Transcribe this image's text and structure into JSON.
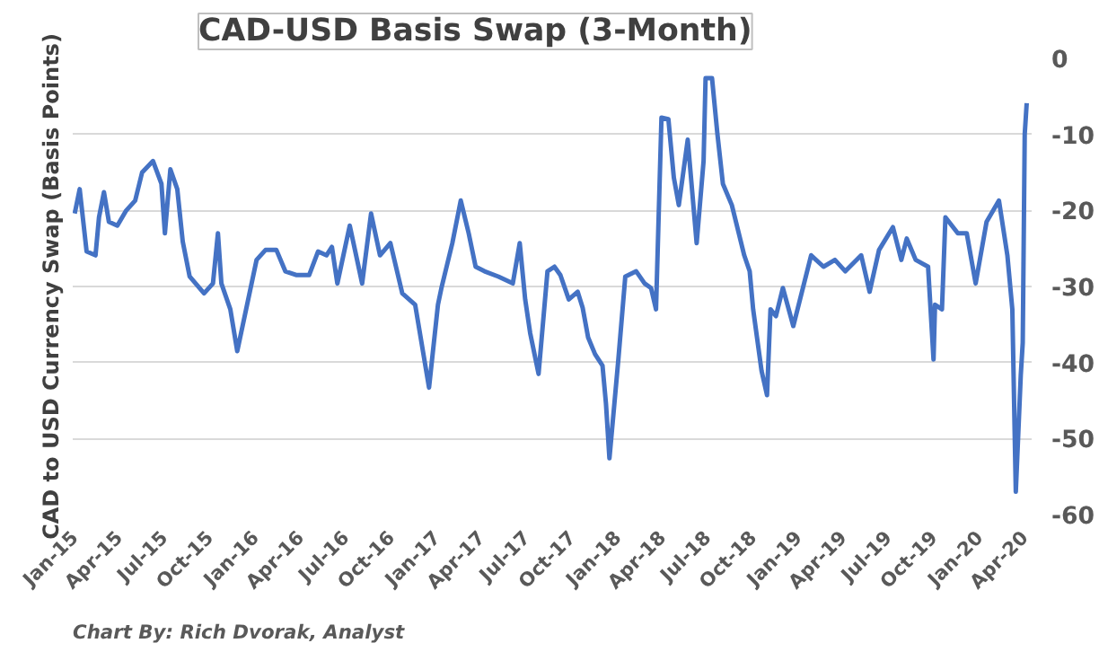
{
  "chart_data": {
    "type": "line",
    "title": "CAD-USD Basis Swap (3-Month)",
    "ylabel": "CAD to USD Currency Swap (Basis Points)",
    "annotations": [
      "Chart By: Rich Dvorak, Analyst"
    ],
    "color": "#4472c4",
    "line_style": "solid",
    "grid": "y",
    "x": [
      "2015-01-01",
      "2015-01-11",
      "2015-01-25",
      "2015-02-12",
      "2015-02-19",
      "2015-03-01",
      "2015-03-11",
      "2015-03-28",
      "2015-04-15",
      "2015-05-03",
      "2015-05-17",
      "2015-06-08",
      "2015-06-25",
      "2015-07-02",
      "2015-07-13",
      "2015-07-27",
      "2015-08-07",
      "2015-08-21",
      "2015-09-19",
      "2015-10-07",
      "2015-10-17",
      "2015-10-24",
      "2015-11-11",
      "2015-11-25",
      "2016-01-03",
      "2016-01-21",
      "2016-02-12",
      "2016-03-01",
      "2016-03-24",
      "2016-04-18",
      "2016-05-06",
      "2016-05-23",
      "2016-06-03",
      "2016-06-14",
      "2016-07-09",
      "2016-08-03",
      "2016-08-21",
      "2016-09-08",
      "2016-09-29",
      "2016-10-23",
      "2016-11-18",
      "2016-12-16",
      "2017-01-03",
      "2017-01-10",
      "2017-02-01",
      "2017-02-18",
      "2017-03-06",
      "2017-03-20",
      "2017-04-07",
      "2017-05-05",
      "2017-06-03",
      "2017-06-17",
      "2017-06-28",
      "2017-07-08",
      "2017-07-25",
      "2017-08-12",
      "2017-08-26",
      "2017-09-07",
      "2017-09-24",
      "2017-10-12",
      "2017-10-22",
      "2017-11-02",
      "2017-11-16",
      "2017-12-01",
      "2017-12-08",
      "2017-12-15",
      "2017-12-25",
      "2018-01-02",
      "2018-01-16",
      "2018-02-07",
      "2018-02-24",
      "2018-03-09",
      "2018-03-19",
      "2018-03-30",
      "2018-04-13",
      "2018-04-24",
      "2018-05-04",
      "2018-05-22",
      "2018-06-09",
      "2018-06-23",
      "2018-06-27",
      "2018-07-10",
      "2018-07-21",
      "2018-08-01",
      "2018-08-19",
      "2018-09-13",
      "2018-09-24",
      "2018-10-01",
      "2018-10-18",
      "2018-10-29",
      "2018-11-05",
      "2018-11-16",
      "2018-11-30",
      "2018-12-21",
      "2019-01-26",
      "2019-02-20",
      "2019-03-15",
      "2019-04-05",
      "2019-05-07",
      "2019-05-24",
      "2019-06-12",
      "2019-07-10",
      "2019-07-27",
      "2019-08-07",
      "2019-08-25",
      "2019-09-19",
      "2019-09-30",
      "2019-10-03",
      "2019-10-17",
      "2019-10-24",
      "2019-11-18",
      "2019-12-06",
      "2019-12-24",
      "2020-01-15",
      "2020-02-09",
      "2020-02-26",
      "2020-03-07",
      "2020-03-14",
      "2020-03-24",
      "2020-03-28",
      "2020-04-01",
      "2020-04-05"
    ],
    "values": [
      -20.4,
      -17.2,
      -25.4,
      -25.9,
      -20.9,
      -17.6,
      -21.5,
      -22.0,
      -20.0,
      -18.7,
      -15.0,
      -13.5,
      -16.5,
      -23.0,
      -14.6,
      -17.2,
      -24.1,
      -28.7,
      -30.9,
      -29.6,
      -23.0,
      -29.6,
      -33.0,
      -38.5,
      -26.5,
      -25.2,
      -25.2,
      -28.0,
      -28.5,
      -28.5,
      -25.4,
      -25.9,
      -24.8,
      -29.6,
      -22.0,
      -29.6,
      -20.4,
      -25.9,
      -24.3,
      -30.9,
      -32.4,
      -43.3,
      -32.4,
      -30.2,
      -24.3,
      -18.7,
      -23.0,
      -27.4,
      -28.0,
      -28.7,
      -29.6,
      -24.3,
      -31.7,
      -36.1,
      -41.5,
      -28.0,
      -27.4,
      -28.5,
      -31.7,
      -30.7,
      -32.8,
      -36.7,
      -38.9,
      -40.4,
      -45.4,
      -52.6,
      -45.4,
      -39.6,
      -28.7,
      -28.0,
      -29.6,
      -30.2,
      -33.0,
      -7.8,
      -8.0,
      -15.7,
      -19.3,
      -10.7,
      -24.3,
      -13.5,
      -2.6,
      -2.6,
      -10.0,
      -16.5,
      -19.3,
      -25.9,
      -28.0,
      -33.0,
      -41.1,
      -44.3,
      -33.0,
      -33.9,
      -30.2,
      -35.2,
      -25.9,
      -27.4,
      -26.5,
      -28.0,
      -25.9,
      -30.7,
      -25.2,
      -22.2,
      -26.5,
      -23.7,
      -26.5,
      -27.4,
      -39.6,
      -32.4,
      -33.0,
      -20.9,
      -23.0,
      -23.0,
      -29.6,
      -21.5,
      -18.7,
      -25.9,
      -33.0,
      -57.0,
      -41.7,
      -37.4,
      -10.0,
      -5.9
    ],
    "xlim": [
      "2014-12-28",
      "2020-04-15"
    ],
    "xticks": [
      {
        "value": "2015-01-01",
        "label": "Jan-15"
      },
      {
        "value": "2015-04-01",
        "label": "Apr-15"
      },
      {
        "value": "2015-07-01",
        "label": "Jul-15"
      },
      {
        "value": "2015-10-01",
        "label": "Oct-15"
      },
      {
        "value": "2016-01-01",
        "label": "Jan-16"
      },
      {
        "value": "2016-04-01",
        "label": "Apr-16"
      },
      {
        "value": "2016-07-01",
        "label": "Jul-16"
      },
      {
        "value": "2016-10-01",
        "label": "Oct-16"
      },
      {
        "value": "2017-01-01",
        "label": "Jan-17"
      },
      {
        "value": "2017-04-01",
        "label": "Apr-17"
      },
      {
        "value": "2017-07-01",
        "label": "Jul-17"
      },
      {
        "value": "2017-10-01",
        "label": "Oct-17"
      },
      {
        "value": "2018-01-01",
        "label": "Jan-18"
      },
      {
        "value": "2018-04-01",
        "label": "Apr-18"
      },
      {
        "value": "2018-07-01",
        "label": "Jul-18"
      },
      {
        "value": "2018-10-01",
        "label": "Oct-18"
      },
      {
        "value": "2019-01-01",
        "label": "Jan-19"
      },
      {
        "value": "2019-04-01",
        "label": "Apr-19"
      },
      {
        "value": "2019-07-01",
        "label": "Jul-19"
      },
      {
        "value": "2019-10-01",
        "label": "Oct-19"
      },
      {
        "value": "2020-01-01",
        "label": "Jan-20"
      },
      {
        "value": "2020-04-01",
        "label": "Apr-20"
      }
    ],
    "ylim": [
      -60,
      0
    ],
    "yticks": [
      0,
      -10,
      -20,
      -30,
      -40,
      -50,
      -60
    ]
  }
}
